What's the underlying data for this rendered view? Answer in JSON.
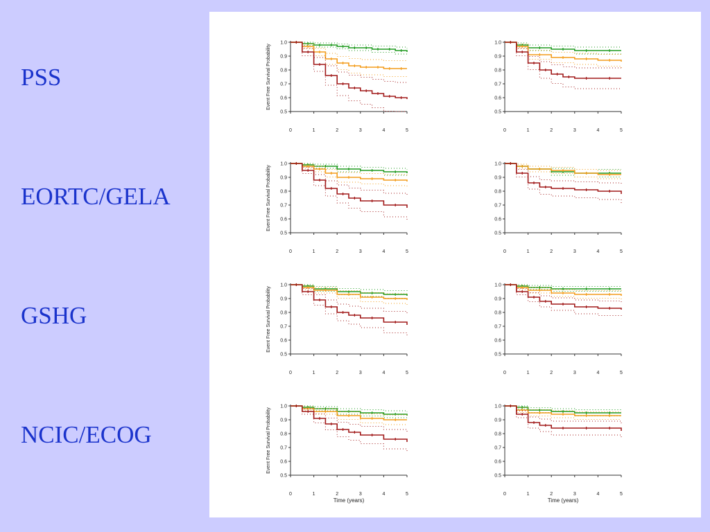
{
  "row_labels": [
    "PSS",
    "EORTC/GELA",
    "GSHG",
    "NCIC/ECOG"
  ],
  "colors": {
    "green": "#1e9a1e",
    "orange": "#f39c1a",
    "red": "#a01818",
    "background": "#CCCCFF",
    "label_text": "#1a33cc"
  },
  "chart_data": [
    {
      "type": "line",
      "row": "PSS",
      "ylabel": "Event Free Survival Probability",
      "xlabel": "",
      "xlim": [
        0,
        5
      ],
      "ylim": [
        0.5,
        1.0
      ],
      "x_ticks": [
        "0",
        "1",
        "2",
        "3",
        "4",
        "5"
      ],
      "y_ticks": [
        "1.0",
        "0.9",
        "0.8",
        "0.7",
        "0.6",
        "0.5"
      ],
      "series": [
        {
          "color": "green",
          "x": [
            0,
            0.5,
            1,
            1.5,
            2,
            2.5,
            3,
            3.5,
            4,
            4.5,
            5
          ],
          "y": [
            1.0,
            0.99,
            0.98,
            0.98,
            0.97,
            0.96,
            0.96,
            0.95,
            0.95,
            0.94,
            0.93
          ]
        },
        {
          "color": "orange",
          "x": [
            0,
            0.5,
            1,
            1.5,
            2,
            2.5,
            3,
            3.5,
            4,
            4.5,
            5
          ],
          "y": [
            1.0,
            0.97,
            0.93,
            0.88,
            0.85,
            0.83,
            0.82,
            0.82,
            0.81,
            0.81,
            0.81
          ]
        },
        {
          "color": "red",
          "x": [
            0,
            0.5,
            1,
            1.5,
            2,
            2.5,
            3,
            3.5,
            4,
            4.5,
            5
          ],
          "y": [
            1.0,
            0.93,
            0.84,
            0.76,
            0.7,
            0.67,
            0.65,
            0.63,
            0.61,
            0.6,
            0.59
          ]
        }
      ]
    },
    {
      "type": "line",
      "row": "PSS",
      "xlabel": "",
      "xlim": [
        0,
        5
      ],
      "ylim": [
        0.5,
        1.0
      ],
      "x_ticks": [
        "0",
        "1",
        "2",
        "3",
        "4",
        "5"
      ],
      "y_ticks": [
        "1.0",
        "0.9",
        "0.8",
        "0.7",
        "0.6",
        "0.5"
      ],
      "series": [
        {
          "color": "green",
          "x": [
            0,
            0.5,
            1,
            2,
            3,
            4,
            5
          ],
          "y": [
            1.0,
            0.98,
            0.96,
            0.95,
            0.94,
            0.94,
            0.94
          ]
        },
        {
          "color": "orange",
          "x": [
            0,
            0.5,
            1,
            2,
            3,
            4,
            5
          ],
          "y": [
            1.0,
            0.97,
            0.91,
            0.89,
            0.88,
            0.87,
            0.86
          ]
        },
        {
          "color": "red",
          "x": [
            0,
            0.5,
            1,
            1.5,
            2,
            2.5,
            3,
            4,
            5
          ],
          "y": [
            1.0,
            0.93,
            0.85,
            0.8,
            0.77,
            0.75,
            0.74,
            0.74,
            0.74
          ]
        }
      ]
    },
    {
      "type": "line",
      "row": "EORTC/GELA",
      "ylabel": "Event Free Survival Probability",
      "xlabel": "",
      "xlim": [
        0,
        5
      ],
      "ylim": [
        0.5,
        1.0
      ],
      "x_ticks": [
        "0",
        "1",
        "2",
        "3",
        "4",
        "5"
      ],
      "y_ticks": [
        "1.0",
        "0.9",
        "0.8",
        "0.7",
        "0.6",
        "0.5"
      ],
      "series": [
        {
          "color": "green",
          "x": [
            0,
            0.5,
            1,
            2,
            3,
            4,
            5
          ],
          "y": [
            1.0,
            0.99,
            0.98,
            0.96,
            0.95,
            0.94,
            0.93
          ]
        },
        {
          "color": "orange",
          "x": [
            0,
            0.5,
            1,
            1.5,
            2,
            3,
            4,
            5
          ],
          "y": [
            1.0,
            0.98,
            0.96,
            0.93,
            0.9,
            0.89,
            0.88,
            0.87
          ]
        },
        {
          "color": "red",
          "x": [
            0,
            0.5,
            1,
            1.5,
            2,
            2.5,
            3,
            4,
            5
          ],
          "y": [
            1.0,
            0.95,
            0.88,
            0.82,
            0.78,
            0.75,
            0.73,
            0.7,
            0.68
          ]
        }
      ]
    },
    {
      "type": "line",
      "row": "EORTC/GELA",
      "xlabel": "",
      "xlim": [
        0,
        5
      ],
      "ylim": [
        0.5,
        1.0
      ],
      "x_ticks": [
        "0",
        "1",
        "2",
        "3",
        "4",
        "5"
      ],
      "y_ticks": [
        "1.0",
        "0.9",
        "0.8",
        "0.7",
        "0.6",
        "0.5"
      ],
      "series": [
        {
          "color": "green",
          "x": [
            0,
            0.5,
            1,
            2,
            3,
            4,
            5
          ],
          "y": [
            1.0,
            0.98,
            0.96,
            0.94,
            0.93,
            0.93,
            0.93
          ]
        },
        {
          "color": "orange",
          "x": [
            0,
            0.5,
            1,
            2,
            3,
            4,
            5
          ],
          "y": [
            1.0,
            0.98,
            0.96,
            0.95,
            0.93,
            0.92,
            0.92
          ]
        },
        {
          "color": "red",
          "x": [
            0,
            0.5,
            1,
            1.5,
            2,
            3,
            4,
            5
          ],
          "y": [
            1.0,
            0.93,
            0.86,
            0.83,
            0.82,
            0.81,
            0.8,
            0.78
          ]
        }
      ]
    },
    {
      "type": "line",
      "row": "GSHG",
      "ylabel": "Event Free Survival Probability",
      "xlabel": "",
      "xlim": [
        0,
        5
      ],
      "ylim": [
        0.5,
        1.0
      ],
      "x_ticks": [
        "0",
        "1",
        "2",
        "3",
        "4",
        "5"
      ],
      "y_ticks": [
        "1.0",
        "0.9",
        "0.8",
        "0.7",
        "0.6",
        "0.5"
      ],
      "series": [
        {
          "color": "green",
          "x": [
            0,
            0.5,
            1,
            2,
            3,
            4,
            5
          ],
          "y": [
            1.0,
            0.99,
            0.97,
            0.95,
            0.94,
            0.93,
            0.92
          ]
        },
        {
          "color": "orange",
          "x": [
            0,
            0.5,
            1,
            2,
            3,
            4,
            5
          ],
          "y": [
            1.0,
            0.98,
            0.96,
            0.93,
            0.91,
            0.9,
            0.89
          ]
        },
        {
          "color": "red",
          "x": [
            0,
            0.5,
            1,
            1.5,
            2,
            2.5,
            3,
            4,
            5
          ],
          "y": [
            1.0,
            0.95,
            0.89,
            0.84,
            0.8,
            0.78,
            0.76,
            0.73,
            0.71
          ]
        }
      ]
    },
    {
      "type": "line",
      "row": "GSHG",
      "xlabel": "",
      "xlim": [
        0,
        5
      ],
      "ylim": [
        0.5,
        1.0
      ],
      "x_ticks": [
        "0",
        "1",
        "2",
        "3",
        "4",
        "5"
      ],
      "y_ticks": [
        "1.0",
        "0.9",
        "0.8",
        "0.7",
        "0.6",
        "0.5"
      ],
      "series": [
        {
          "color": "green",
          "x": [
            0,
            0.5,
            1,
            2,
            3,
            4,
            5
          ],
          "y": [
            1.0,
            0.99,
            0.98,
            0.97,
            0.97,
            0.97,
            0.97
          ]
        },
        {
          "color": "orange",
          "x": [
            0,
            0.5,
            1,
            2,
            3,
            4,
            5
          ],
          "y": [
            1.0,
            0.98,
            0.96,
            0.94,
            0.93,
            0.93,
            0.92
          ]
        },
        {
          "color": "red",
          "x": [
            0,
            0.5,
            1,
            1.5,
            2,
            3,
            4,
            5
          ],
          "y": [
            1.0,
            0.95,
            0.91,
            0.88,
            0.86,
            0.84,
            0.83,
            0.82
          ]
        }
      ]
    },
    {
      "type": "line",
      "row": "NCIC/ECOG",
      "ylabel": "Event Free Survival Probability",
      "xlabel": "Time (years)",
      "xlim": [
        0,
        5
      ],
      "ylim": [
        0.5,
        1.0
      ],
      "x_ticks": [
        "0",
        "1",
        "2",
        "3",
        "4",
        "5"
      ],
      "y_ticks": [
        "1.0",
        "0.9",
        "0.8",
        "0.7",
        "0.6",
        "0.5"
      ],
      "series": [
        {
          "color": "green",
          "x": [
            0,
            0.5,
            1,
            2,
            3,
            4,
            5
          ],
          "y": [
            1.0,
            0.99,
            0.98,
            0.96,
            0.95,
            0.94,
            0.93
          ]
        },
        {
          "color": "orange",
          "x": [
            0,
            0.5,
            1,
            2,
            3,
            4,
            5
          ],
          "y": [
            1.0,
            0.98,
            0.96,
            0.93,
            0.91,
            0.9,
            0.9
          ]
        },
        {
          "color": "red",
          "x": [
            0,
            0.5,
            1,
            1.5,
            2,
            2.5,
            3,
            4,
            5
          ],
          "y": [
            1.0,
            0.96,
            0.91,
            0.87,
            0.83,
            0.81,
            0.79,
            0.76,
            0.74
          ]
        }
      ]
    },
    {
      "type": "line",
      "row": "NCIC/ECOG",
      "xlabel": "Time (years)",
      "xlim": [
        0,
        5
      ],
      "ylim": [
        0.5,
        1.0
      ],
      "x_ticks": [
        "0",
        "1",
        "2",
        "3",
        "4",
        "5"
      ],
      "y_ticks": [
        "1.0",
        "0.9",
        "0.8",
        "0.7",
        "0.6",
        "0.5"
      ],
      "series": [
        {
          "color": "green",
          "x": [
            0,
            0.5,
            1,
            2,
            3,
            4,
            5
          ],
          "y": [
            1.0,
            0.99,
            0.97,
            0.96,
            0.95,
            0.95,
            0.95
          ]
        },
        {
          "color": "orange",
          "x": [
            0,
            0.5,
            1,
            2,
            3,
            4,
            5
          ],
          "y": [
            1.0,
            0.97,
            0.95,
            0.94,
            0.93,
            0.93,
            0.93
          ]
        },
        {
          "color": "red",
          "x": [
            0,
            0.5,
            1,
            1.5,
            2,
            3,
            4,
            5
          ],
          "y": [
            1.0,
            0.94,
            0.88,
            0.86,
            0.84,
            0.84,
            0.84,
            0.82
          ]
        }
      ]
    }
  ]
}
